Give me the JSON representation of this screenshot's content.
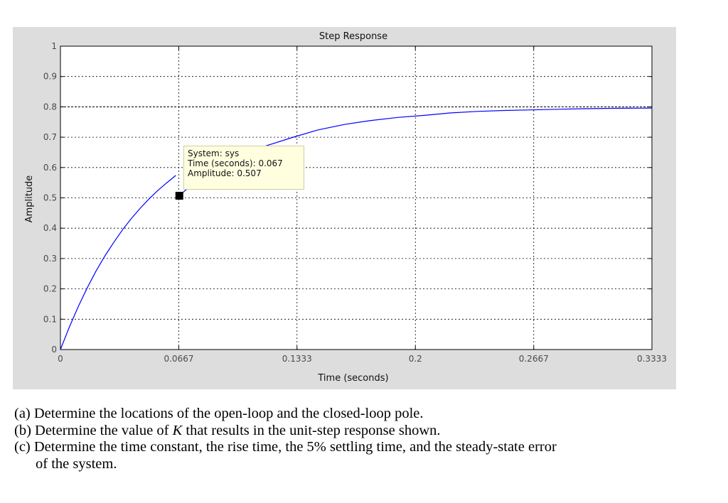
{
  "chart_data": {
    "type": "line",
    "title": "Step Response",
    "xlabel": "Time (seconds)",
    "ylabel": "Amplitude",
    "xlim": [
      0,
      0.3333
    ],
    "ylim": [
      0,
      1
    ],
    "x_ticks": [
      "0",
      "0.0667",
      "0.1333",
      "0.2",
      "0.2667",
      "0.3333"
    ],
    "y_ticks": [
      "0",
      "0.1",
      "0.2",
      "0.3",
      "0.4",
      "0.5",
      "0.6",
      "0.7",
      "0.8",
      "0.9",
      "1"
    ],
    "grid": true,
    "steady_state_reference": 0.8,
    "series": [
      {
        "color": "#0000ff",
        "x": [
          0,
          0.005,
          0.01,
          0.015,
          0.02,
          0.025,
          0.03,
          0.035,
          0.04,
          0.045,
          0.05,
          0.055,
          0.06,
          0.065,
          0.0667,
          0.075,
          0.085,
          0.1,
          0.115,
          0.13,
          0.145,
          0.16,
          0.175,
          0.19,
          0.205,
          0.22,
          0.235,
          0.25,
          0.265,
          0.28,
          0.295,
          0.31,
          0.3333
        ],
        "y": [
          0,
          0.074,
          0.141,
          0.202,
          0.258,
          0.308,
          0.353,
          0.395,
          0.432,
          0.466,
          0.497,
          0.525,
          0.55,
          0.574,
          0.506,
          0.548,
          0.583,
          0.626,
          0.67,
          0.698,
          0.724,
          0.742,
          0.755,
          0.765,
          0.772,
          0.78,
          0.785,
          0.788,
          0.79,
          0.792,
          0.794,
          0.795,
          0.796
        ]
      }
    ],
    "datatip": {
      "marker": {
        "x": 0.067,
        "y": 0.507
      },
      "line1": "System: sys",
      "line2": "Time (seconds): 0.067",
      "line3": "Amplitude: 0.507"
    }
  },
  "questions": {
    "a": "(a) Determine the locations of the open-loop and the closed-loop pole.",
    "b_prefix": "(b) Determine the value of ",
    "b_var": "K",
    "b_suffix": " that results in the unit-step response shown.",
    "c_line1": "(c) Determine the time constant, the rise time, the 5% settling time, and the steady-state error",
    "c_line2": "of the system."
  }
}
